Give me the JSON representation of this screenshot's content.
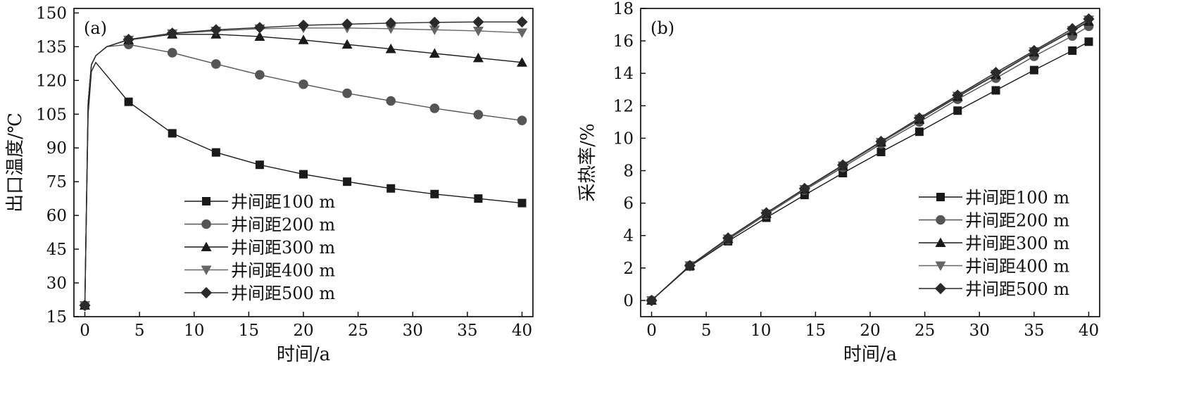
{
  "chart_data": [
    {
      "type": "line",
      "panel_label": "(a)",
      "xlabel": "时间/a",
      "ylabel": "出口温度/℃",
      "xlim": [
        -1,
        41
      ],
      "ylim": [
        15,
        152
      ],
      "xticks": [
        0,
        5,
        10,
        15,
        20,
        25,
        30,
        35,
        40
      ],
      "yticks": [
        15,
        30,
        45,
        60,
        75,
        90,
        105,
        120,
        135,
        150
      ],
      "grid": false,
      "legend_position": "lower-center",
      "series": [
        {
          "name": "井间距100 m",
          "marker": "square",
          "color": "#1a1a1a",
          "x": [
            0,
            0.3,
            0.6,
            1,
            4,
            8,
            12,
            16,
            20,
            24,
            28,
            32,
            36,
            40
          ],
          "y": [
            20,
            105,
            124,
            128,
            110.5,
            96.5,
            88,
            82.5,
            78.3,
            75,
            72,
            69.5,
            67.5,
            65.5
          ],
          "marker_x": [
            0,
            4,
            8,
            12,
            16,
            20,
            24,
            28,
            32,
            36,
            40
          ]
        },
        {
          "name": "井间距200 m",
          "marker": "circle",
          "color": "#555555",
          "x": [
            0,
            0.3,
            0.6,
            1,
            2,
            4,
            8,
            12,
            16,
            20,
            24,
            28,
            32,
            36,
            40
          ],
          "y": [
            20,
            110,
            127,
            131,
            135,
            136,
            132.3,
            127.3,
            122.5,
            118.3,
            114.3,
            110.9,
            107.6,
            104.8,
            102.2
          ],
          "marker_x": [
            0,
            4,
            8,
            12,
            16,
            20,
            24,
            28,
            32,
            36,
            40
          ]
        },
        {
          "name": "井间距300 m",
          "marker": "triangle",
          "color": "#1a1a1a",
          "x": [
            0,
            0.3,
            0.6,
            1,
            2,
            4,
            8,
            12,
            16,
            20,
            24,
            28,
            32,
            36,
            40
          ],
          "y": [
            20,
            110,
            127,
            131,
            135,
            138,
            140.5,
            140.5,
            139.5,
            138,
            136,
            134,
            132,
            130,
            128
          ],
          "marker_x": [
            0,
            4,
            8,
            12,
            16,
            20,
            24,
            28,
            32,
            36,
            40
          ]
        },
        {
          "name": "井间距400 m",
          "marker": "triangle-down",
          "color": "#666666",
          "x": [
            0,
            0.3,
            0.6,
            1,
            2,
            4,
            8,
            12,
            16,
            20,
            24,
            28,
            32,
            36,
            40
          ],
          "y": [
            20,
            110,
            127,
            131,
            135,
            138,
            140.8,
            142,
            143,
            143.3,
            143.3,
            143,
            142.5,
            142,
            141.2
          ],
          "marker_x": [
            0,
            4,
            8,
            12,
            16,
            20,
            24,
            28,
            32,
            36,
            40
          ]
        },
        {
          "name": "井间距500 m",
          "marker": "diamond",
          "color": "#2a2a2a",
          "x": [
            0,
            0.3,
            0.6,
            1,
            2,
            4,
            8,
            12,
            16,
            20,
            24,
            28,
            32,
            36,
            40
          ],
          "y": [
            20,
            110,
            127,
            131,
            135,
            138.2,
            141,
            142.5,
            143.5,
            144.5,
            145,
            145.5,
            145.8,
            146,
            146
          ],
          "marker_x": [
            0,
            4,
            8,
            12,
            16,
            20,
            24,
            28,
            32,
            36,
            40
          ]
        }
      ]
    },
    {
      "type": "line",
      "panel_label": "(b)",
      "xlabel": "时间/a",
      "ylabel": "采热率/%",
      "xlim": [
        -1,
        41
      ],
      "ylim": [
        -1,
        18
      ],
      "xticks": [
        0,
        5,
        10,
        15,
        20,
        25,
        30,
        35,
        40
      ],
      "yticks": [
        0,
        2,
        4,
        6,
        8,
        10,
        12,
        14,
        16,
        18
      ],
      "grid": false,
      "legend_position": "lower-right",
      "series": [
        {
          "name": "井间距100 m",
          "marker": "square",
          "color": "#1a1a1a",
          "x": [
            0,
            3.5,
            7,
            10.5,
            14,
            17.5,
            21,
            24.5,
            28,
            31.5,
            35,
            38.5,
            40
          ],
          "y": [
            0,
            2.1,
            3.65,
            5.1,
            6.5,
            7.85,
            9.15,
            10.4,
            11.7,
            12.95,
            14.2,
            15.4,
            15.95
          ],
          "marker_x": [
            0,
            3.5,
            7,
            10.5,
            14,
            17.5,
            21,
            24.5,
            28,
            31.5,
            35,
            38.5,
            40
          ]
        },
        {
          "name": "井间距200 m",
          "marker": "circle",
          "color": "#555555",
          "x": [
            0,
            3.5,
            7,
            10.5,
            14,
            17.5,
            21,
            24.5,
            28,
            31.5,
            35,
            38.5,
            40
          ],
          "y": [
            0,
            2.15,
            3.75,
            5.3,
            6.8,
            8.2,
            9.65,
            11.0,
            12.4,
            13.7,
            15.05,
            16.3,
            16.9
          ],
          "marker_x": [
            0,
            3.5,
            7,
            10.5,
            14,
            17.5,
            21,
            24.5,
            28,
            31.5,
            35,
            38.5,
            40
          ]
        },
        {
          "name": "井间距300 m",
          "marker": "triangle",
          "color": "#1a1a1a",
          "x": [
            0,
            3.5,
            7,
            10.5,
            14,
            17.5,
            21,
            24.5,
            28,
            31.5,
            35,
            38.5,
            40
          ],
          "y": [
            0,
            2.15,
            3.8,
            5.35,
            6.85,
            8.3,
            9.75,
            11.15,
            12.55,
            13.9,
            15.3,
            16.6,
            17.2
          ],
          "marker_x": [
            0,
            3.5,
            7,
            10.5,
            14,
            17.5,
            21,
            24.5,
            28,
            31.5,
            35,
            38.5,
            40
          ]
        },
        {
          "name": "井间距400 m",
          "marker": "triangle-down",
          "color": "#666666",
          "x": [
            0,
            3.5,
            7,
            10.5,
            14,
            17.5,
            21,
            24.5,
            28,
            31.5,
            35,
            38.5,
            40
          ],
          "y": [
            0,
            2.15,
            3.8,
            5.35,
            6.85,
            8.3,
            9.75,
            11.2,
            12.6,
            13.95,
            15.35,
            16.65,
            17.3
          ],
          "marker_x": [
            0,
            3.5,
            7,
            10.5,
            14,
            17.5,
            21,
            24.5,
            28,
            31.5,
            35,
            38.5,
            40
          ]
        },
        {
          "name": "井间距500 m",
          "marker": "diamond",
          "color": "#2a2a2a",
          "x": [
            0,
            3.5,
            7,
            10.5,
            14,
            17.5,
            21,
            24.5,
            28,
            31.5,
            35,
            38.5,
            40
          ],
          "y": [
            0,
            2.15,
            3.85,
            5.4,
            6.9,
            8.35,
            9.8,
            11.25,
            12.65,
            14.05,
            15.4,
            16.75,
            17.35
          ],
          "marker_x": [
            0,
            3.5,
            7,
            10.5,
            14,
            17.5,
            21,
            24.5,
            28,
            31.5,
            35,
            38.5,
            40
          ]
        }
      ]
    }
  ]
}
